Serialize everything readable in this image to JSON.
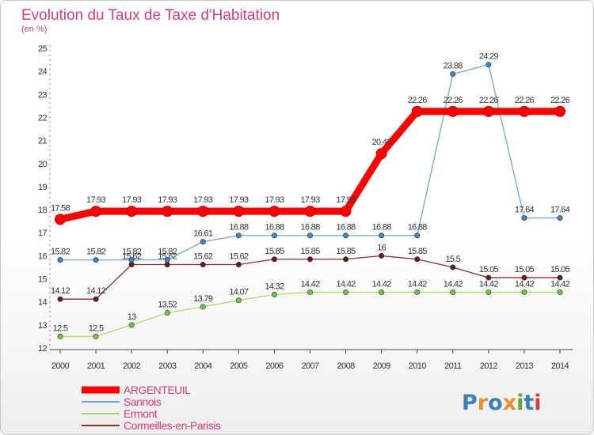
{
  "chart_data": {
    "type": "line",
    "title": "Evolution du Taux de Taxe d'Habitation",
    "subtitle": "(en %)",
    "xlabel": "",
    "ylabel": "",
    "x": [
      "2000",
      "2001",
      "2002",
      "2003",
      "2004",
      "2005",
      "2006",
      "2007",
      "2008",
      "2009",
      "2010",
      "2011",
      "2012",
      "2013",
      "2014"
    ],
    "ylim": [
      12,
      25
    ],
    "yticks": [
      "12",
      "13",
      "14",
      "15",
      "16",
      "17",
      "18",
      "19",
      "20",
      "21",
      "22",
      "23",
      "24",
      "25"
    ],
    "grid": false,
    "legend_position": "bottom-left",
    "series": [
      {
        "name": "ARGENTEUIL",
        "color": "#ff0000",
        "point_color": "#ff0000",
        "values": [
          17.58,
          17.93,
          17.93,
          17.93,
          17.93,
          17.93,
          17.93,
          17.93,
          17.93,
          20.43,
          22.26,
          22.26,
          22.26,
          22.26,
          22.26
        ],
        "labels": [
          "17.58",
          "17.93",
          "17.93",
          "17.93",
          "17.93",
          "17.93",
          "17.93",
          "17.93",
          "17.93",
          "20.43",
          "22.26",
          "22.26",
          "22.26",
          "22.26",
          "22.26"
        ]
      },
      {
        "name": "Sannois",
        "color": "#6fa8dc",
        "point_color": "#3d85c6",
        "values": [
          15.82,
          15.82,
          15.82,
          15.82,
          16.61,
          16.88,
          16.88,
          16.88,
          16.88,
          16.88,
          16.88,
          23.88,
          24.29,
          17.64,
          17.64
        ],
        "labels": [
          "15.82",
          "15.82",
          "15.82",
          "15.82",
          "16.61",
          "16.88",
          "16.88",
          "16.88",
          "16.88",
          "16.88",
          "16.88",
          "23.88",
          "24.29",
          "17.64",
          "17.64"
        ]
      },
      {
        "name": "Ermont",
        "color": "#a8e06f",
        "point_color": "#6cc644",
        "values": [
          12.5,
          12.5,
          13,
          13.52,
          13.79,
          14.07,
          14.32,
          14.42,
          14.42,
          14.42,
          14.42,
          14.42,
          14.42,
          14.42,
          14.42
        ],
        "labels": [
          "12.5",
          "12.5",
          "13",
          "13.52",
          "13.79",
          "14.07",
          "14.32",
          "14.42",
          "14.42",
          "14.42",
          "14.42",
          "14.42",
          "14.42",
          "14.42",
          "14.42"
        ]
      },
      {
        "name": "Cormeilles-en-Parisis",
        "color": "#8a2e2e",
        "point_color": "#6b1a1a",
        "values": [
          14.12,
          14.12,
          15.62,
          15.62,
          15.62,
          15.62,
          15.85,
          15.85,
          15.85,
          16,
          15.85,
          15.5,
          15.05,
          15.05,
          15.05
        ],
        "labels": [
          "14.12",
          "14.12",
          "15.62",
          "15.62",
          "15.62",
          "15.62",
          "15.85",
          "15.85",
          "15.85",
          "16",
          "15.85",
          "15.5",
          "15.05",
          "15.05",
          "15.05"
        ]
      }
    ]
  },
  "logo": {
    "letters": [
      "P",
      "r",
      "o",
      "x",
      "i",
      "t",
      "i"
    ],
    "colors": [
      "#3a7fc1",
      "#e8912b",
      "#3a7fc1",
      "#e8912b",
      "#5aa83c",
      "#3a7fc1",
      "#d93c3c"
    ]
  }
}
